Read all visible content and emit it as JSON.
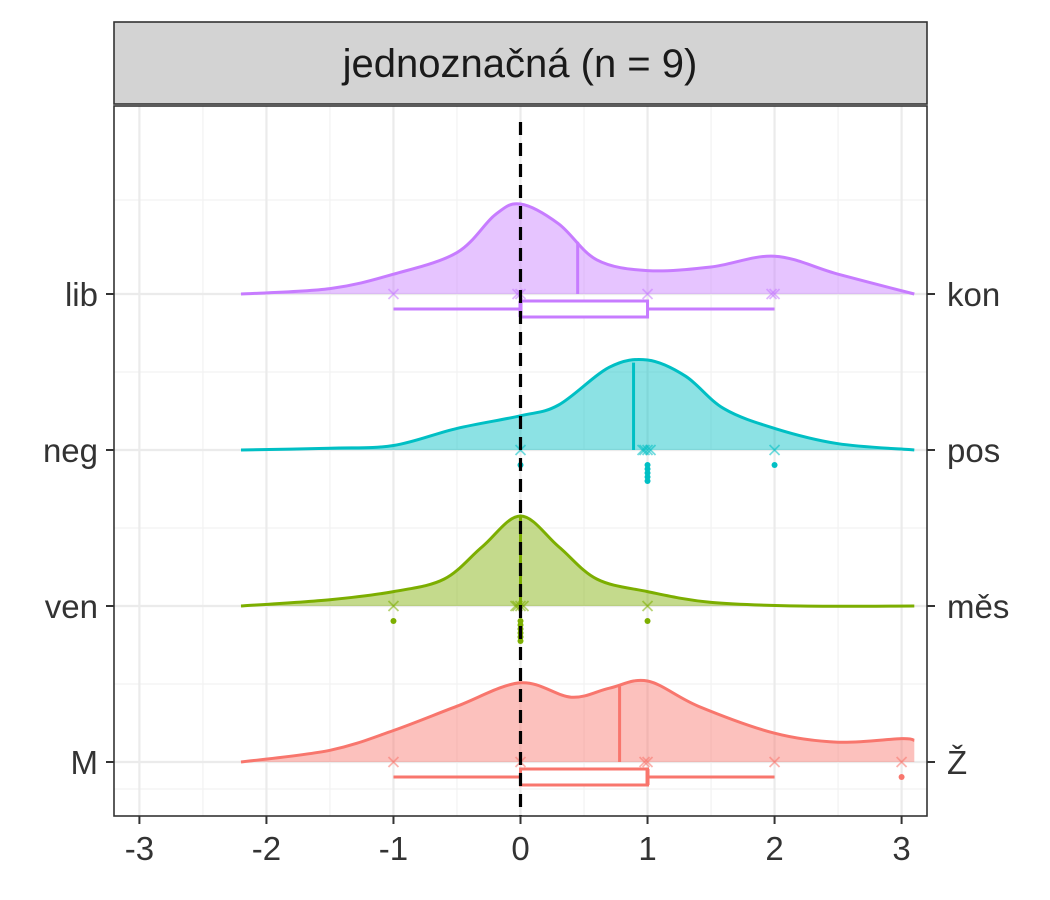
{
  "chart_data": {
    "type": "ridgeline",
    "title": "jednoznačná (n = 9)",
    "xlabel": "",
    "ylabel": "",
    "xlim": [
      -3.2,
      3.2
    ],
    "x_ticks": [
      -3,
      -2,
      -1,
      0,
      1,
      2,
      3
    ],
    "x_tick_labels": [
      "-3",
      "-2",
      "-1",
      "0",
      "1",
      "2",
      "3"
    ],
    "grid": true,
    "reference_line": {
      "x": 0,
      "style": "dashed",
      "color": "#000000"
    },
    "rows": [
      {
        "left_label": "lib",
        "right_label": "kon",
        "color": "#C77CFF",
        "mean": 0.45,
        "points": [
          -1,
          0,
          0,
          1,
          2,
          2
        ],
        "point_marks": [],
        "box": {
          "min": -1,
          "q1": 0,
          "median": 0,
          "q3": 1,
          "max": 2
        },
        "density": [
          [
            -2.2,
            0.0
          ],
          [
            -1.5,
            0.06
          ],
          [
            -1.0,
            0.22
          ],
          [
            -0.5,
            0.46
          ],
          [
            -0.2,
            0.88
          ],
          [
            0.0,
            1.0
          ],
          [
            0.3,
            0.78
          ],
          [
            0.6,
            0.38
          ],
          [
            1.0,
            0.26
          ],
          [
            1.5,
            0.3
          ],
          [
            2.0,
            0.42
          ],
          [
            2.5,
            0.22
          ],
          [
            3.1,
            0.0
          ]
        ]
      },
      {
        "left_label": "neg",
        "right_label": "pos",
        "color": "#00BFC4",
        "mean": 0.89,
        "points": [
          0,
          1,
          1,
          1,
          1,
          2
        ],
        "point_marks": [
          0,
          1,
          1,
          1,
          1,
          1,
          2
        ],
        "box": null,
        "density": [
          [
            -2.2,
            0.0
          ],
          [
            -1.5,
            0.02
          ],
          [
            -1.0,
            0.05
          ],
          [
            -0.5,
            0.24
          ],
          [
            0.0,
            0.38
          ],
          [
            0.3,
            0.5
          ],
          [
            0.7,
            0.92
          ],
          [
            1.0,
            1.0
          ],
          [
            1.3,
            0.82
          ],
          [
            1.6,
            0.46
          ],
          [
            2.0,
            0.24
          ],
          [
            2.5,
            0.07
          ],
          [
            3.1,
            0.0
          ]
        ]
      },
      {
        "left_label": "ven",
        "right_label": "měs",
        "color": "#7CAE00",
        "mean": 0.0,
        "points": [
          -1,
          0,
          0,
          0,
          0,
          1
        ],
        "point_marks": [
          -1,
          0,
          0,
          0,
          0,
          0,
          0,
          1
        ],
        "box": null,
        "density": [
          [
            -2.2,
            0.0
          ],
          [
            -1.5,
            0.07
          ],
          [
            -1.0,
            0.16
          ],
          [
            -0.6,
            0.3
          ],
          [
            -0.3,
            0.66
          ],
          [
            0.0,
            1.0
          ],
          [
            0.3,
            0.66
          ],
          [
            0.6,
            0.3
          ],
          [
            1.0,
            0.16
          ],
          [
            1.5,
            0.04
          ],
          [
            2.2,
            0.0
          ],
          [
            3.1,
            0.0
          ]
        ]
      },
      {
        "left_label": "M",
        "right_label": "Ž",
        "color": "#F8766D",
        "mean": 0.78,
        "points": [
          -1,
          0,
          1,
          1,
          2,
          3
        ],
        "point_marks": [
          3
        ],
        "box": {
          "min": -1,
          "q1": 0,
          "median": 1,
          "q3": 1,
          "max": 2
        },
        "density": [
          [
            -2.2,
            0.0
          ],
          [
            -1.5,
            0.13
          ],
          [
            -1.0,
            0.35
          ],
          [
            -0.5,
            0.62
          ],
          [
            0.0,
            0.88
          ],
          [
            0.4,
            0.72
          ],
          [
            0.7,
            0.82
          ],
          [
            1.0,
            0.9
          ],
          [
            1.4,
            0.62
          ],
          [
            2.0,
            0.32
          ],
          [
            2.5,
            0.22
          ],
          [
            3.0,
            0.26
          ],
          [
            3.1,
            0.24
          ]
        ]
      }
    ]
  }
}
